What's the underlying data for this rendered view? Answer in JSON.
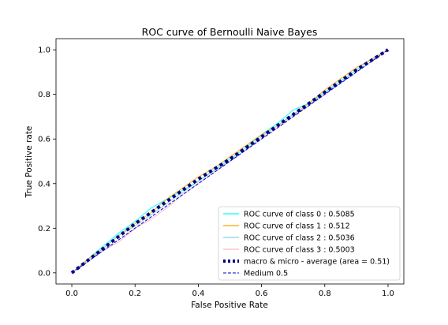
{
  "chart_data": {
    "type": "line",
    "title": "ROC curve of Bernoulli Naive Bayes",
    "xlabel": "False Positive Rate",
    "ylabel": "True Positive rate",
    "xlim": [
      -0.05,
      1.05
    ],
    "ylim": [
      -0.05,
      1.05
    ],
    "x_ticks": [
      "0.0",
      "0.2",
      "0.4",
      "0.6",
      "0.8",
      "1.0"
    ],
    "y_ticks": [
      "0.0",
      "0.2",
      "0.4",
      "0.6",
      "0.8",
      "1.0"
    ],
    "grid": false,
    "legend_position": "lower-right",
    "series": [
      {
        "name": "ROC curve of class 0 : 0.5085",
        "color": "#00ffff",
        "style": "solid",
        "x": [
          0.0,
          0.05,
          0.1,
          0.15,
          0.2,
          0.25,
          0.3,
          0.35,
          0.4,
          0.45,
          0.5,
          0.55,
          0.6,
          0.65,
          0.7,
          0.75,
          0.8,
          0.85,
          0.9,
          0.95,
          1.0
        ],
        "y": [
          0.0,
          0.06,
          0.12,
          0.18,
          0.23,
          0.29,
          0.33,
          0.37,
          0.41,
          0.46,
          0.51,
          0.56,
          0.62,
          0.67,
          0.73,
          0.76,
          0.81,
          0.86,
          0.91,
          0.96,
          1.0
        ]
      },
      {
        "name": "ROC curve of class 1 : 0.512",
        "color": "#ffa500",
        "style": "solid",
        "x": [
          0.0,
          0.05,
          0.1,
          0.15,
          0.2,
          0.25,
          0.3,
          0.35,
          0.4,
          0.45,
          0.5,
          0.55,
          0.6,
          0.65,
          0.7,
          0.75,
          0.8,
          0.85,
          0.9,
          0.95,
          1.0
        ],
        "y": [
          0.0,
          0.06,
          0.11,
          0.17,
          0.22,
          0.27,
          0.33,
          0.38,
          0.43,
          0.47,
          0.52,
          0.57,
          0.62,
          0.66,
          0.71,
          0.76,
          0.82,
          0.87,
          0.92,
          0.96,
          1.0
        ]
      },
      {
        "name": "ROC curve of class 2 : 0.5036",
        "color": "#87ceeb",
        "style": "solid",
        "x": [
          0.0,
          0.05,
          0.1,
          0.15,
          0.2,
          0.25,
          0.3,
          0.35,
          0.4,
          0.45,
          0.5,
          0.55,
          0.6,
          0.65,
          0.7,
          0.75,
          0.8,
          0.85,
          0.9,
          0.95,
          1.0
        ],
        "y": [
          0.0,
          0.05,
          0.11,
          0.17,
          0.21,
          0.26,
          0.31,
          0.36,
          0.41,
          0.46,
          0.5,
          0.55,
          0.61,
          0.66,
          0.71,
          0.75,
          0.81,
          0.85,
          0.9,
          0.95,
          1.0
        ]
      },
      {
        "name": "ROC curve of class 3 : 0.5003",
        "color": "#ffb6c1",
        "style": "solid",
        "x": [
          0.0,
          0.05,
          0.1,
          0.15,
          0.2,
          0.25,
          0.3,
          0.35,
          0.4,
          0.45,
          0.5,
          0.55,
          0.6,
          0.65,
          0.7,
          0.75,
          0.8,
          0.85,
          0.9,
          0.95,
          1.0
        ],
        "y": [
          0.0,
          0.05,
          0.1,
          0.14,
          0.2,
          0.24,
          0.29,
          0.35,
          0.4,
          0.45,
          0.5,
          0.55,
          0.6,
          0.65,
          0.7,
          0.75,
          0.8,
          0.85,
          0.9,
          0.95,
          1.0
        ]
      },
      {
        "name": "macro & micro - average (area = 0.51)",
        "color": "#000080",
        "style": "dotted-thick",
        "x": [
          0.0,
          0.1,
          0.2,
          0.3,
          0.4,
          0.5,
          0.6,
          0.7,
          0.8,
          0.9,
          1.0
        ],
        "y": [
          0.0,
          0.11,
          0.22,
          0.32,
          0.42,
          0.51,
          0.61,
          0.71,
          0.81,
          0.91,
          1.0
        ]
      },
      {
        "name": "Medium 0.5",
        "color": "#0000cd",
        "style": "dashed",
        "x": [
          0.0,
          1.0
        ],
        "y": [
          0.0,
          1.0
        ]
      }
    ]
  }
}
